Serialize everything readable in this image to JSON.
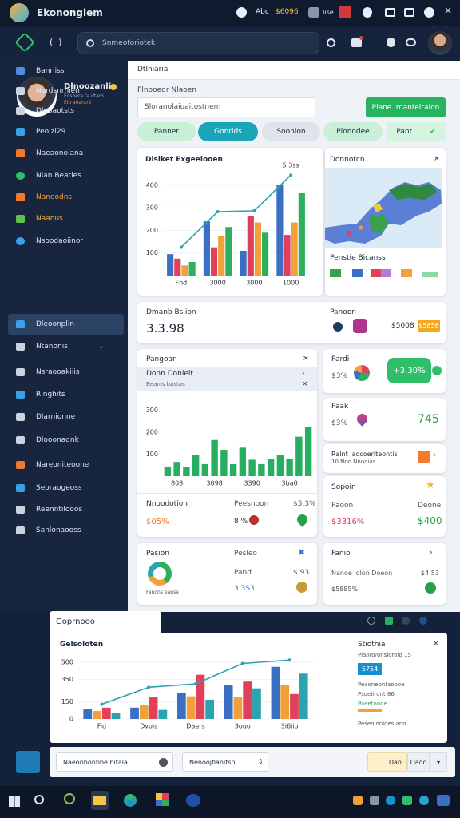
{
  "titlebar": {
    "app_name": "Ekonongiem",
    "label": "Abc",
    "balance": "$6096",
    "status": "Iise"
  },
  "search": {
    "placeholder": "Snmeotoriotek"
  },
  "profile": {
    "name": "Dlnoozanli",
    "lines": [
      "Eosoera ta dtaro",
      "Eio aeantr2"
    ]
  },
  "sidebar": {
    "items": [
      "Banrliss",
      "Nardsnrnien",
      "Dlnoaotsts",
      "Peolzl29",
      "Naeaonoiana",
      "Nian Beatles",
      "Naneodns",
      "Naanus",
      "Nsoodaoiinor",
      "Dleoonplin",
      "Ntanonis",
      "Nsraooakiiis",
      "Ringhits",
      "Dlarnionne",
      "Dlooonadnk",
      "Nareoniteoone",
      "Seoraogeoss",
      "Reenntilooos",
      "Sanlonaooss"
    ]
  },
  "main": {
    "header": "Dtlniaria",
    "field_label": "Plnooedr Nlaoen",
    "input": "Sloranolaioaitostnem",
    "button": "Plane Imanteiraion",
    "tabs": [
      "Panner",
      "Gonrids",
      "Soonion",
      "Plonodee",
      "Pant"
    ],
    "map": {
      "title": "Donnotcn",
      "caption": "Penstie Bicanss"
    },
    "stat": {
      "title": "Dmanb Bsiion",
      "value": "3.3.98",
      "label": "Panoon",
      "amount": "$5008",
      "badge": "$5856"
    },
    "list": {
      "title": "Pangoan",
      "row_title": "Donn Donieit",
      "row_sub": "Beanls bastas"
    },
    "footer": {
      "left_label": "Nnoodotion",
      "mid_label": "Peesnoon",
      "right_label": "$5.3%",
      "left_value": "$05%",
      "mid_value": "8 %"
    },
    "card_pardi": {
      "title": "Pardi",
      "value": "$3%",
      "pill": "+3.30%"
    },
    "card_paak": {
      "title": "Paak",
      "value": "$3%",
      "big": "745"
    },
    "card_ralnt": {
      "title": "Ralnt Iaocoeriteontis",
      "sub": "10 Noo Nnoaias"
    },
    "card_sopoin": {
      "title": "Sopoin",
      "left_label": "Paoon",
      "right_label": "Deone",
      "left_value": "$3316%",
      "right_value": "$400"
    },
    "card_pasion": {
      "title": "Pasion",
      "caption": "Fanons eansa",
      "label": "Pesleo",
      "row_label": "Pand",
      "row_value": "$ 93",
      "row_link": "3 3S3"
    },
    "card_fanio": {
      "title": "Fanio",
      "row_label": "Nanoe Iolon Doeon",
      "row_value": "$4.53",
      "value": "$5885%"
    }
  },
  "bottom": {
    "tab": "Goprnooo",
    "side": {
      "title": "Stiotnia",
      "line1": "Piaoro/onsiorolo 15",
      "badge": "5754",
      "line2": "Peaoneontaoooe",
      "line3": "Psoeiirunt 86",
      "line4": "Paeetonoe",
      "line5": "Peseolonloes ano"
    }
  },
  "controls": {
    "select1": "Naeonbonbbe bitala",
    "select2": "Nenoojfianitsn",
    "button1": "Dan",
    "button2": "Daoo"
  },
  "chart_data": [
    {
      "type": "bar",
      "title": "Dlsiket Exgeelooen",
      "annotation": "5 3ss",
      "categories": [
        "Fhd",
        "3000",
        "3000",
        "1000"
      ],
      "series": [
        {
          "color": "#3a6fc4",
          "values": [
            95,
            240,
            110,
            400
          ]
        },
        {
          "color": "#e0405a",
          "values": [
            75,
            125,
            265,
            180
          ]
        },
        {
          "color": "#f2a03c",
          "values": [
            45,
            175,
            235,
            235
          ]
        },
        {
          "color": "#2fae5e",
          "values": [
            60,
            215,
            190,
            365
          ]
        },
        {
          "type": "line",
          "color": "#2ba3b0",
          "values": [
            125,
            283,
            287,
            445
          ]
        }
      ],
      "ylim": [
        0,
        460
      ],
      "yticks": [
        100,
        200,
        300,
        400
      ],
      "grid": true
    },
    {
      "type": "bar",
      "categories": [
        null,
        "808",
        null,
        null,
        null,
        "3098",
        null,
        null,
        null,
        "3390",
        null,
        null,
        null,
        "3ba0",
        null,
        null
      ],
      "series": [
        {
          "color": "#27ae60",
          "values": [
            40,
            65,
            40,
            95,
            55,
            165,
            120,
            55,
            130,
            75,
            55,
            80,
            95,
            80,
            180,
            225
          ]
        }
      ],
      "ylim": [
        0,
        350
      ],
      "yticks": [
        100,
        200,
        300
      ],
      "grid": false
    },
    {
      "type": "bar",
      "title": "Gelsoloten",
      "categories": [
        "Fid",
        "Dvois",
        "Daers",
        "3ouo",
        "3i6iio"
      ],
      "series": [
        {
          "color": "#3a6fc4",
          "values": [
            90,
            100,
            230,
            300,
            460
          ]
        },
        {
          "color": "#f2a03c",
          "values": [
            70,
            120,
            200,
            190,
            300
          ]
        },
        {
          "color": "#e0405a",
          "values": [
            100,
            190,
            390,
            330,
            220
          ]
        },
        {
          "color": "#2ba3b0",
          "values": [
            50,
            80,
            170,
            270,
            400
          ]
        },
        {
          "type": "line",
          "color": "#2ba3b0",
          "values": [
            130,
            280,
            310,
            490,
            520
          ]
        }
      ],
      "ylim": [
        0,
        550
      ],
      "yticks": [
        0,
        150,
        350,
        500
      ],
      "grid": true
    }
  ]
}
